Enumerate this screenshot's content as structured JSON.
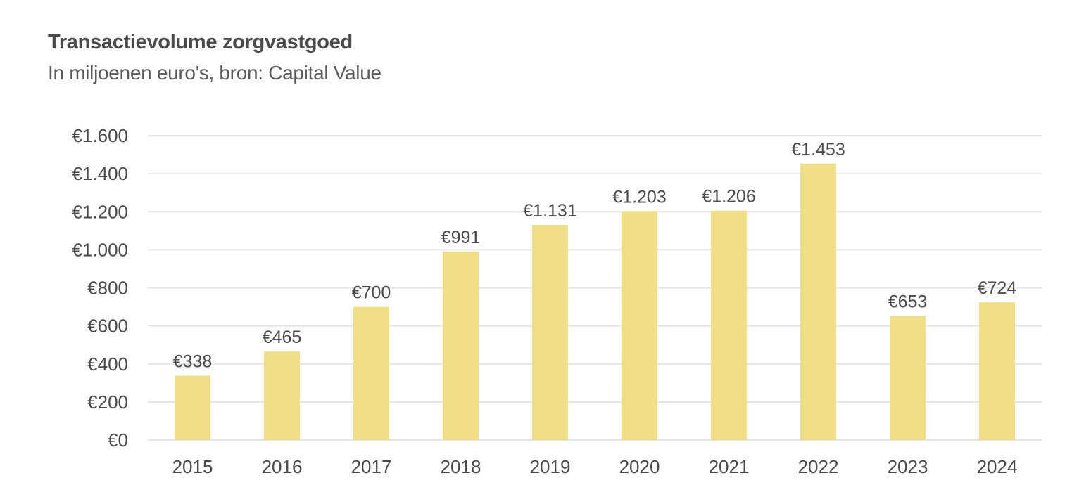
{
  "chart_data": {
    "type": "bar",
    "title": "Transactievolume zorgvastgoed",
    "subtitle": "In miljoenen euro's, bron: Capital Value",
    "categories": [
      "2015",
      "2016",
      "2017",
      "2018",
      "2019",
      "2020",
      "2021",
      "2022",
      "2023",
      "2024"
    ],
    "values": [
      338,
      465,
      700,
      991,
      1131,
      1203,
      1206,
      1453,
      653,
      724
    ],
    "value_labels": [
      "€338",
      "€465",
      "€700",
      "€991",
      "€1.131",
      "€1.203",
      "€1.206",
      "€1.453",
      "€653",
      "€724"
    ],
    "y_ticks": [
      0,
      200,
      400,
      600,
      800,
      1000,
      1200,
      1400,
      1600
    ],
    "y_tick_labels": [
      "€0",
      "€200",
      "€400",
      "€600",
      "€800",
      "€1.000",
      "€1.200",
      "€1.400",
      "€1.600"
    ],
    "ylim": [
      0,
      1600
    ],
    "xlabel": "",
    "ylabel": "",
    "grid": true,
    "colors": {
      "bar": "#f0df88",
      "grid": "#e4e4e4",
      "text": "#4a4a4a"
    }
  }
}
